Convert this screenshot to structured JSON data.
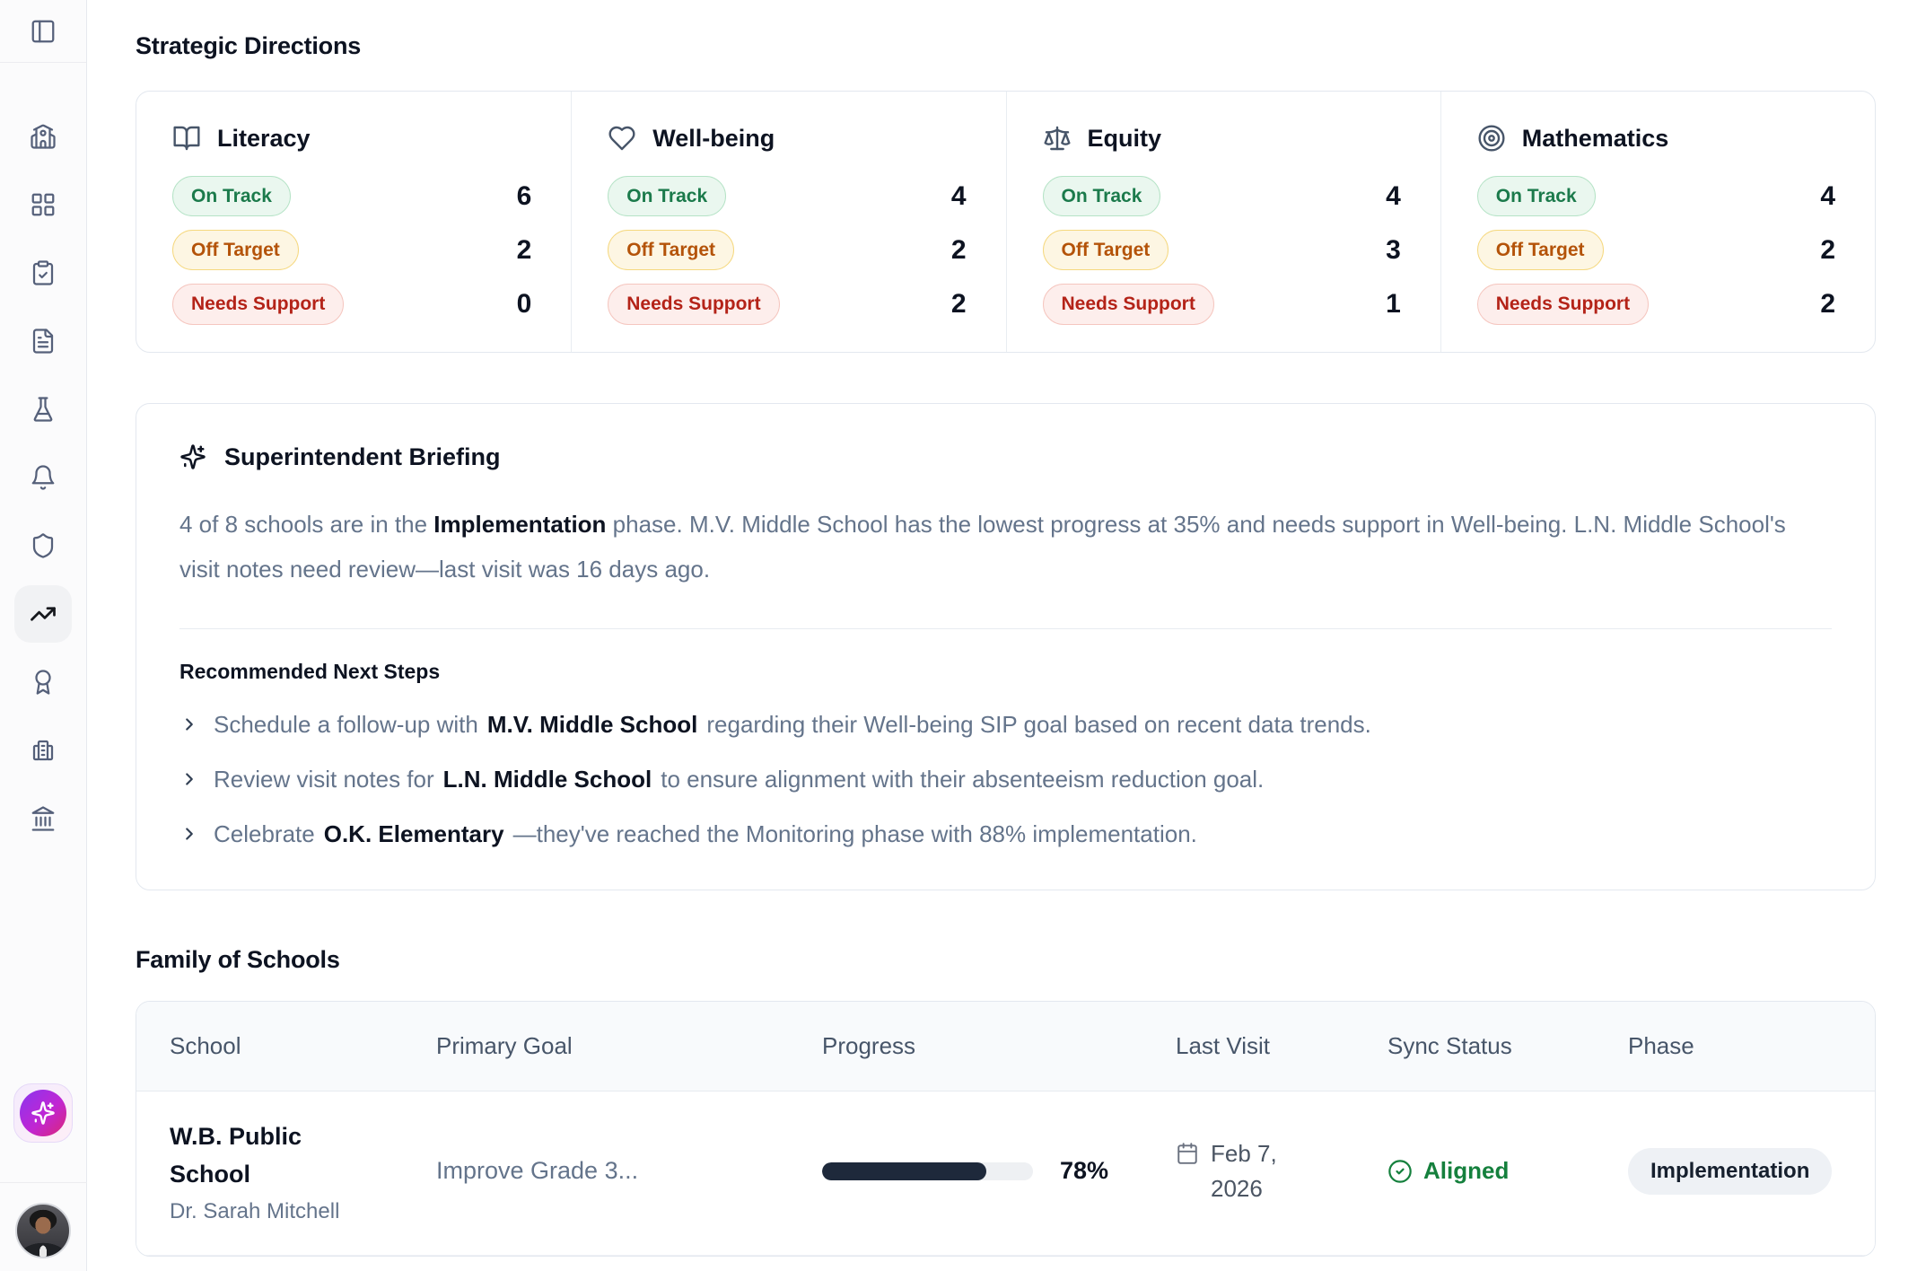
{
  "sidebar": {
    "icons": [
      "panel-left",
      "school",
      "layout-dashboard",
      "clipboard-check",
      "file-text",
      "flask",
      "bell",
      "shield",
      "trending-up",
      "award",
      "printer",
      "landmark",
      "sparkles",
      "user-avatar"
    ],
    "active_item": "trending-up"
  },
  "headings": {
    "strategic_directions": "Strategic Directions",
    "family_of_schools": "Family of Schools"
  },
  "badge_labels": {
    "on_track": "On Track",
    "off_target": "Off Target",
    "needs_support": "Needs Support"
  },
  "strategic_cards": [
    {
      "title": "Literacy",
      "icon": "book-open",
      "on_track": "6",
      "off_target": "2",
      "needs_support": "0"
    },
    {
      "title": "Well-being",
      "icon": "heart",
      "on_track": "4",
      "off_target": "2",
      "needs_support": "2"
    },
    {
      "title": "Equity",
      "icon": "scale",
      "on_track": "4",
      "off_target": "3",
      "needs_support": "1"
    },
    {
      "title": "Mathematics",
      "icon": "target",
      "on_track": "4",
      "off_target": "2",
      "needs_support": "2"
    }
  ],
  "briefing": {
    "title": "Superintendent Briefing",
    "summary": {
      "part1": "4 of 8 schools are in the ",
      "bold1": "Implementation",
      "part2": " phase. M.V. Middle School has the lowest progress at 35% and needs support in Well-being. L.N. Middle School's visit notes need review—last visit was 16 days ago."
    },
    "next_steps_title": "Recommended Next Steps",
    "steps": [
      {
        "prefix": "Schedule a follow-up with",
        "school": "M.V. Middle School",
        "suffix": "regarding their Well-being SIP goal based on recent data trends."
      },
      {
        "prefix": "Review visit notes for",
        "school": "L.N. Middle School",
        "suffix": "to ensure alignment with their absenteeism reduction goal."
      },
      {
        "prefix": "Celebrate",
        "school": "O.K. Elementary",
        "suffix": "—they've reached the Monitoring phase with 88% implementation."
      }
    ]
  },
  "table": {
    "headers": [
      "School",
      "Primary Goal",
      "Progress",
      "Last Visit",
      "Sync Status",
      "Phase"
    ],
    "rows": [
      {
        "school": "W.B. Public School",
        "principal": "Dr. Sarah Mitchell",
        "goal": "Improve Grade 3...",
        "progress_pct": 78,
        "progress_label": "78%",
        "last_visit": "Feb 7, 2026",
        "sync_status": "Aligned",
        "phase": "Implementation"
      }
    ]
  },
  "colors": {
    "on_track_text": "#1b7a4b",
    "on_track_bg": "#eaf7ef",
    "on_track_border": "#b5e3c6",
    "off_target_text": "#b45309",
    "off_target_bg": "#fdf6e3",
    "off_target_border": "#f5d87f",
    "needs_support_text": "#b42318",
    "needs_support_bg": "#fdeeec",
    "needs_support_border": "#f5c6bf",
    "aligned_green": "#15803d",
    "progress_fill": "#1e293b",
    "ai_gradient_start": "#9333ea",
    "ai_gradient_end": "#db2777"
  }
}
